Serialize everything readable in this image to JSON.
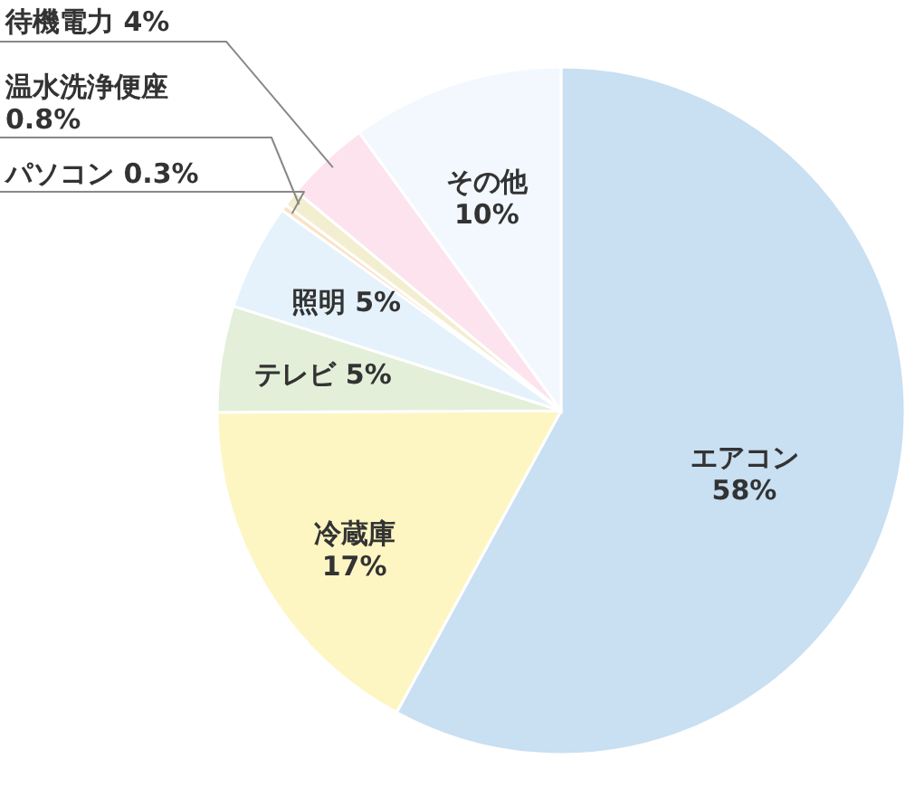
{
  "chart_data": {
    "type": "pie",
    "categories": [
      "エアコン",
      "冷蔵庫",
      "テレビ",
      "照明",
      "パソコン",
      "温水洗浄便座",
      "待機電力",
      "その他"
    ],
    "values": [
      58,
      17,
      5,
      5,
      0.3,
      0.8,
      4,
      10
    ],
    "value_labels": [
      "58%",
      "17%",
      "5%",
      "5%",
      "0.3%",
      "0.8%",
      "4%",
      "10%"
    ],
    "colors": [
      "#c9dff2",
      "#fdf6c3",
      "#e3efd9",
      "#e5f2fb",
      "#fbe2c6",
      "#f3eecf",
      "#fce3ee",
      "#f2f8fd"
    ]
  }
}
